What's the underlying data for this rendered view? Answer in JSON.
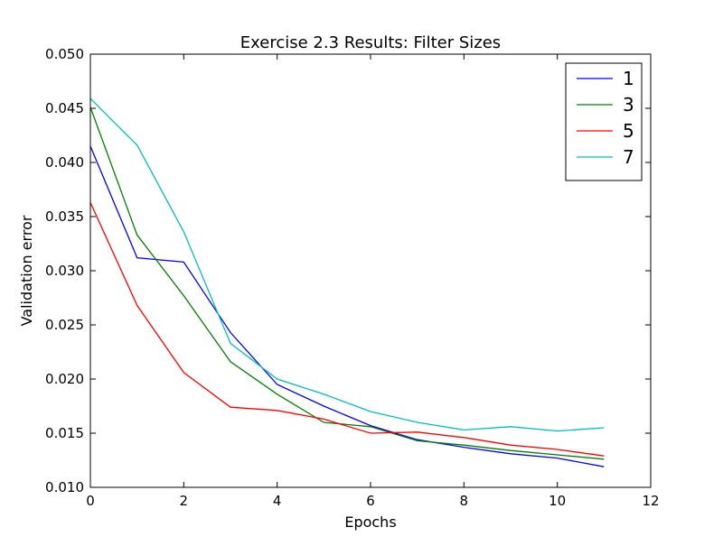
{
  "chart_data": {
    "type": "line",
    "title": "Exercise 2.3 Results: Filter Sizes",
    "xlabel": "Epochs",
    "ylabel": "Validation error",
    "xlim": [
      0,
      12
    ],
    "ylim": [
      0.01,
      0.05
    ],
    "xticks": [
      "0",
      "2",
      "4",
      "6",
      "8",
      "10",
      "12"
    ],
    "yticks": [
      "0.010",
      "0.015",
      "0.020",
      "0.025",
      "0.030",
      "0.035",
      "0.040",
      "0.045",
      "0.050"
    ],
    "grid": false,
    "legend_position": "top-right",
    "x": [
      0,
      1,
      2,
      3,
      4,
      5,
      6,
      7,
      8,
      9,
      10,
      11
    ],
    "series": [
      {
        "name": "1",
        "color": "#0000ff",
        "values": [
          0.0415,
          0.0312,
          0.0308,
          0.0243,
          0.0195,
          0.0175,
          0.0157,
          0.0144,
          0.0137,
          0.0131,
          0.0127,
          0.0119
        ]
      },
      {
        "name": "3",
        "color": "#008000",
        "values": [
          0.0451,
          0.0333,
          0.0277,
          0.0216,
          0.0186,
          0.016,
          0.0156,
          0.0143,
          0.0139,
          0.0134,
          0.013,
          0.0126
        ]
      },
      {
        "name": "5",
        "color": "#ff0000",
        "values": [
          0.0363,
          0.0268,
          0.0206,
          0.0174,
          0.0171,
          0.0163,
          0.015,
          0.0151,
          0.0146,
          0.0139,
          0.0135,
          0.0129
        ]
      },
      {
        "name": "7",
        "color": "#00bfbf",
        "values": [
          0.0459,
          0.0416,
          0.0336,
          0.0233,
          0.02,
          0.0186,
          0.017,
          0.016,
          0.0153,
          0.0156,
          0.0152,
          0.0155
        ]
      }
    ]
  }
}
